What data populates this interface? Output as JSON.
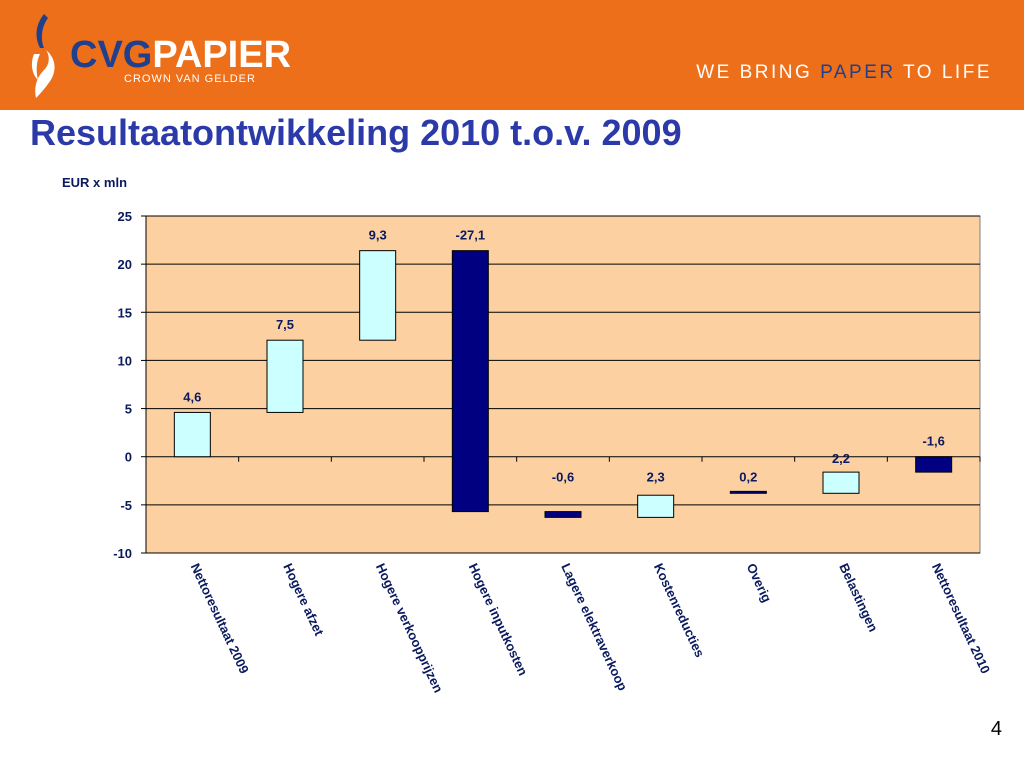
{
  "header": {
    "logo_text_part1": "CVG",
    "logo_text_part2": "PAPIER",
    "logo_subtitle": "CROWN VAN GELDER",
    "tagline_part1": "WE BRING ",
    "tagline_highlight": "PAPER",
    "tagline_part2": " TO LIFE",
    "colors": {
      "background": "#ee6f19",
      "brand_blue": "#1f3f8f"
    }
  },
  "slide": {
    "title": "Resultaatontwikkeling 2010 t.o.v. 2009",
    "page_number": "4"
  },
  "chart_data": {
    "type": "bar",
    "subtype": "waterfall",
    "ylabel": "EUR x mln",
    "ylim": [
      -10,
      25
    ],
    "yticks": [
      25,
      20,
      15,
      10,
      5,
      0,
      -5,
      -10
    ],
    "ytick_labels": [
      "25",
      "20",
      "15",
      "10",
      "5",
      "0",
      "-5",
      "-10"
    ],
    "grid": true,
    "plot_background": "#fdd0a2",
    "categories": [
      "Nettoresultaat 2009",
      "Hogere afzet",
      "Hogere verkoopprijzen",
      "Hogere inputkosten",
      "Lagere elektraverkoop",
      "Kostenreducties",
      "Overig",
      "Belastingen",
      "Nettoresultaat 2010"
    ],
    "bars": [
      {
        "label": "4,6",
        "bottom": 0,
        "top": 4.6,
        "color": "#ccffff"
      },
      {
        "label": "7,5",
        "bottom": 4.6,
        "top": 12.1,
        "color": "#ccffff"
      },
      {
        "label": "9,3",
        "bottom": 12.1,
        "top": 21.4,
        "color": "#ccffff"
      },
      {
        "label": "-27,1",
        "bottom": -5.7,
        "top": 21.4,
        "color": "#000080"
      },
      {
        "label": "-0,6",
        "bottom": -6.3,
        "top": -5.7,
        "color": "#000080"
      },
      {
        "label": "2,3",
        "bottom": -6.3,
        "top": -4.0,
        "color": "#ccffff"
      },
      {
        "label": "0,2",
        "bottom": -3.8,
        "top": -3.6,
        "color": "#000080"
      },
      {
        "label": "2,2",
        "bottom": -3.8,
        "top": -1.6,
        "color": "#ccffff"
      },
      {
        "label": "-1,6",
        "bottom": -1.6,
        "top": 0,
        "color": "#000080"
      }
    ]
  }
}
